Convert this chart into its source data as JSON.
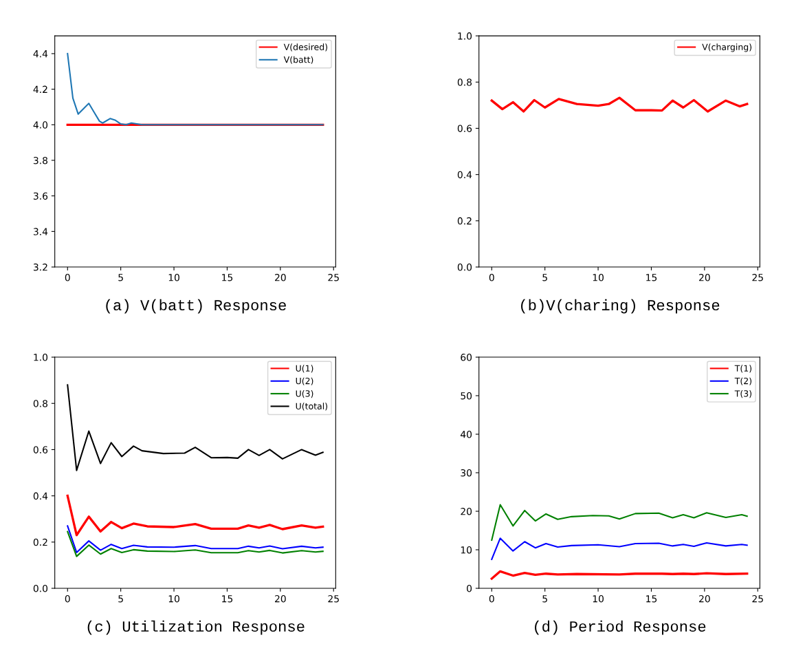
{
  "chart_data": [
    {
      "type": "line",
      "title": "(a) V(batt) Response",
      "xlim": [
        -1.2,
        25.2
      ],
      "xticks": [
        0,
        5,
        10,
        15,
        20,
        25
      ],
      "ylim": [
        3.2,
        4.5
      ],
      "yticks": [
        3.2,
        3.4,
        3.6,
        3.8,
        {
          "value": 4,
          "label": "4.0"
        },
        4.2,
        4.4
      ],
      "legend": "upper right",
      "grid": false,
      "series": [
        {
          "name": "V(desired)",
          "color": "#ff0000",
          "x": [
            0,
            24
          ],
          "values": [
            4.0,
            4.0
          ]
        },
        {
          "name": "V(batt)",
          "color": "#1f77b4",
          "x": [
            0,
            0.5,
            1,
            1.5,
            2,
            2.5,
            3,
            3.3,
            4,
            4.5,
            5,
            5.5,
            6,
            6.5,
            7,
            8,
            10,
            24
          ],
          "values": [
            4.4,
            4.15,
            4.06,
            4.09,
            4.12,
            4.07,
            4.02,
            4.01,
            4.035,
            4.025,
            4.005,
            4.0,
            4.01,
            4.005,
            4.0,
            4.0,
            4.0,
            4.0
          ]
        }
      ]
    },
    {
      "type": "line",
      "title": "(b)V(charing) Response",
      "xlim": [
        -1.2,
        25.2
      ],
      "xticks": [
        0,
        5,
        10,
        15,
        20,
        25
      ],
      "ylim": [
        0,
        1
      ],
      "yticks": [
        {
          "value": 0,
          "label": "0.0"
        },
        0.2,
        0.4,
        0.6,
        0.8,
        {
          "value": 1,
          "label": "1.0"
        }
      ],
      "legend": "upper right",
      "grid": false,
      "series": [
        {
          "name": "V(charging)",
          "color": "#ff0000",
          "x": [
            0,
            1,
            2,
            3,
            4,
            5,
            6.3,
            8,
            10,
            11,
            12,
            13.5,
            15,
            16,
            17,
            18,
            19,
            20.3,
            22,
            23.3,
            24
          ],
          "values": [
            0.72,
            0.683,
            0.713,
            0.673,
            0.722,
            0.69,
            0.727,
            0.705,
            0.698,
            0.705,
            0.732,
            0.678,
            0.678,
            0.677,
            0.72,
            0.69,
            0.722,
            0.673,
            0.72,
            0.695,
            0.705
          ]
        }
      ]
    },
    {
      "type": "line",
      "title": "(c) Utilization Response",
      "xlim": [
        -1.2,
        25.2
      ],
      "xticks": [
        0,
        5,
        10,
        15,
        20,
        25
      ],
      "ylim": [
        0,
        1
      ],
      "yticks": [
        {
          "value": 0,
          "label": "0.0"
        },
        0.2,
        0.4,
        0.6,
        0.8,
        {
          "value": 1,
          "label": "1.0"
        }
      ],
      "legend": "upper right",
      "grid": false,
      "series": [
        {
          "name": "U(1)",
          "color": "#ff0000",
          "x": [
            0,
            0.85,
            2,
            3.1,
            4.1,
            5.1,
            6.2,
            7.5,
            10,
            12,
            13.5,
            16,
            17,
            18,
            19,
            20.2,
            22,
            23.3,
            24
          ],
          "values": [
            0.4,
            0.23,
            0.31,
            0.246,
            0.287,
            0.26,
            0.28,
            0.268,
            0.265,
            0.278,
            0.258,
            0.258,
            0.272,
            0.262,
            0.274,
            0.256,
            0.272,
            0.262,
            0.267
          ]
        },
        {
          "name": "U(2)",
          "color": "#0000ff",
          "x": [
            0,
            0.85,
            2,
            3.1,
            4.1,
            5.1,
            6.2,
            7.5,
            10,
            12,
            13.5,
            16,
            17,
            18,
            19,
            20.2,
            22,
            23.3,
            24
          ],
          "values": [
            0.27,
            0.155,
            0.205,
            0.165,
            0.19,
            0.172,
            0.186,
            0.179,
            0.178,
            0.185,
            0.172,
            0.172,
            0.182,
            0.175,
            0.183,
            0.171,
            0.182,
            0.175,
            0.178
          ]
        },
        {
          "name": "U(3)",
          "color": "#008000",
          "x": [
            0,
            0.85,
            2,
            3.1,
            4.1,
            5.1,
            6.2,
            7.5,
            10,
            12,
            13.5,
            16,
            17,
            18,
            19,
            20.2,
            22,
            23.3,
            24
          ],
          "values": [
            0.245,
            0.138,
            0.187,
            0.148,
            0.172,
            0.155,
            0.167,
            0.161,
            0.159,
            0.166,
            0.154,
            0.154,
            0.163,
            0.157,
            0.164,
            0.153,
            0.163,
            0.157,
            0.16
          ]
        },
        {
          "name": "U(total)",
          "color": "#000000",
          "x": [
            0,
            0.85,
            2,
            3.1,
            4.1,
            5.1,
            6.2,
            7,
            9,
            11,
            12,
            13.5,
            15,
            16,
            17,
            18,
            19,
            20.2,
            22,
            23.3,
            24
          ],
          "values": [
            0.88,
            0.51,
            0.68,
            0.54,
            0.63,
            0.57,
            0.615,
            0.595,
            0.583,
            0.585,
            0.61,
            0.565,
            0.566,
            0.563,
            0.6,
            0.575,
            0.6,
            0.56,
            0.6,
            0.576,
            0.588
          ]
        }
      ]
    },
    {
      "type": "line",
      "title": "(d) Period Response",
      "xlim": [
        -1.2,
        25.2
      ],
      "xticks": [
        0,
        5,
        10,
        15,
        20,
        25
      ],
      "ylim": [
        0,
        60
      ],
      "yticks": [
        0,
        10,
        20,
        30,
        40,
        50,
        60
      ],
      "legend": "upper right",
      "grid": false,
      "series": [
        {
          "name": "T(1)",
          "color": "#ff0000",
          "x": [
            0,
            0.8,
            2,
            3.1,
            4.1,
            5.1,
            6.2,
            8,
            12,
            13.5,
            16,
            17,
            18,
            19,
            20.2,
            22,
            24
          ],
          "values": [
            2.5,
            4.4,
            3.3,
            4.0,
            3.5,
            3.8,
            3.6,
            3.7,
            3.6,
            3.8,
            3.8,
            3.7,
            3.8,
            3.7,
            3.9,
            3.7,
            3.8
          ]
        },
        {
          "name": "T(2)",
          "color": "#0000ff",
          "x": [
            0,
            0.8,
            2,
            3.1,
            4.1,
            5.1,
            6.2,
            7.5,
            10,
            12,
            13.5,
            15.7,
            17,
            18,
            19,
            20.2,
            22,
            23.5,
            24
          ],
          "values": [
            7.5,
            13.0,
            9.7,
            12.1,
            10.5,
            11.6,
            10.7,
            11.1,
            11.3,
            10.8,
            11.6,
            11.7,
            11.0,
            11.4,
            10.9,
            11.8,
            11.0,
            11.4,
            11.2
          ]
        },
        {
          "name": "T(3)",
          "color": "#008000",
          "x": [
            0,
            0.8,
            2,
            3.1,
            4.1,
            5.1,
            6.2,
            7.5,
            9.5,
            11,
            12,
            13.5,
            15.7,
            17,
            18,
            19,
            20.2,
            22,
            23.5,
            24
          ],
          "values": [
            12.5,
            21.7,
            16.2,
            20.2,
            17.5,
            19.3,
            17.9,
            18.6,
            18.9,
            18.8,
            18.0,
            19.4,
            19.5,
            18.3,
            19.1,
            18.3,
            19.6,
            18.4,
            19.1,
            18.7
          ]
        }
      ]
    }
  ]
}
